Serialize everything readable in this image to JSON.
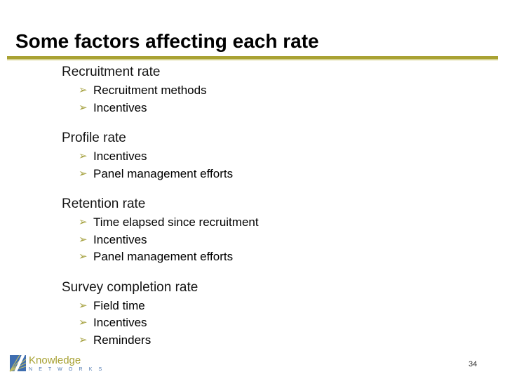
{
  "slide": {
    "title": "Some factors affecting each rate",
    "page_number": "34"
  },
  "sections": [
    {
      "heading": "Recruitment rate",
      "items": [
        "Recruitment methods",
        "Incentives"
      ]
    },
    {
      "heading": "Profile rate",
      "items": [
        "Incentives",
        "Panel management efforts"
      ]
    },
    {
      "heading": "Retention rate",
      "items": [
        "Time elapsed since recruitment",
        "Incentives",
        "Panel management efforts"
      ]
    },
    {
      "heading": "Survey completion rate",
      "items": [
        "Field time",
        "Incentives",
        "Reminders"
      ]
    }
  ],
  "footer": {
    "logo_name": "Knowledge",
    "logo_sub": "N E T W O R K S"
  },
  "icons": {
    "bullet": "➢",
    "logo": "knowledge-networks-logo"
  },
  "colors": {
    "rule_olive": "#a9a233",
    "rule_olive_light": "#d6d28f",
    "bullet_arrow_olive": "#a4a03c",
    "logo_olive": "#a8a234",
    "logo_blue": "#4e79b2",
    "text_black": "#000000"
  }
}
